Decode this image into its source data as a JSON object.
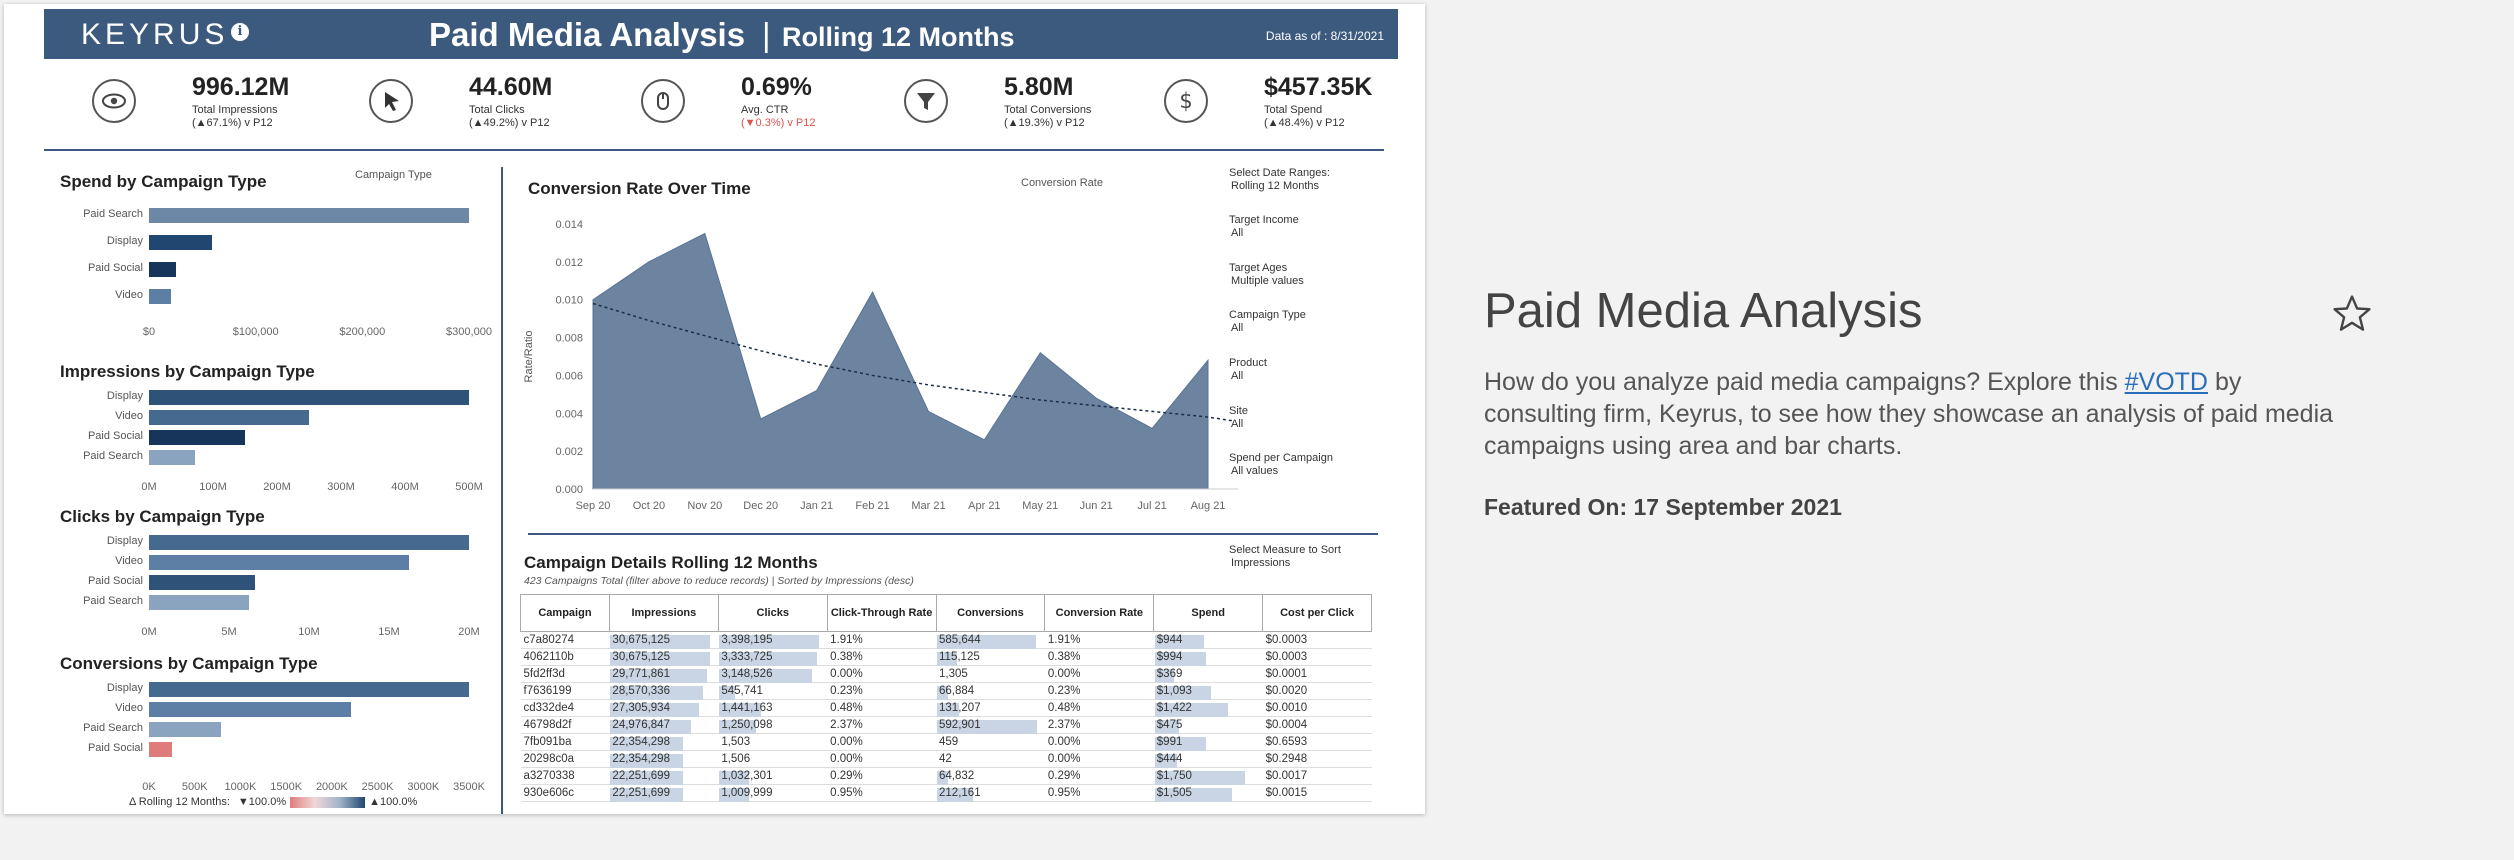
{
  "header": {
    "logo": "KEYRUS",
    "info_label": "i",
    "title": "Paid Media Analysis",
    "separator": "|",
    "subtitle": "Rolling 12 Months",
    "data_as_of": "Data as of : 8/31/2021"
  },
  "kpis": [
    {
      "icon": "eye-icon",
      "value": "996.12M",
      "label": "Total Impressions",
      "change": "(▲67.1%) v P12",
      "dir": "up"
    },
    {
      "icon": "cursor-icon",
      "value": "44.60M",
      "label": "Total Clicks",
      "change": "(▲49.2%) v P12",
      "dir": "up"
    },
    {
      "icon": "mouse-icon",
      "value": "0.69%",
      "label": "Avg. CTR",
      "change": "(▼0.3%) v P12",
      "dir": "down"
    },
    {
      "icon": "funnel-icon",
      "value": "5.80M",
      "label": "Total Conversions",
      "change": "(▲19.3%) v P12",
      "dir": "up"
    },
    {
      "icon": "dollar-icon",
      "value": "$457.35K",
      "label": "Total Spend",
      "change": "(▲48.4%) v P12",
      "dir": "up"
    }
  ],
  "spend": {
    "title": "Spend by Campaign Type",
    "legend_label": "Campaign Type",
    "bars": [
      {
        "label": "Paid Search",
        "value": 318000,
        "color": "#6d87a6"
      },
      {
        "label": "Display",
        "value": 63000,
        "color": "#1f4770"
      },
      {
        "label": "Paid Social",
        "value": 27000,
        "color": "#17355a"
      },
      {
        "label": "Video",
        "value": 22000,
        "color": "#5d7fa6"
      }
    ],
    "max": 318000,
    "ticks": [
      "$0",
      "$100,000",
      "$200,000",
      "$300,000"
    ]
  },
  "impressions": {
    "title": "Impressions by Campaign Type",
    "bars": [
      {
        "label": "Display",
        "value": 505,
        "color": "#2f5378"
      },
      {
        "label": "Video",
        "value": 252,
        "color": "#46698f"
      },
      {
        "label": "Paid Social",
        "value": 152,
        "color": "#17355a"
      },
      {
        "label": "Paid Search",
        "value": 72,
        "color": "#8aa3bf"
      }
    ],
    "max": 505,
    "ticks": [
      "0M",
      "100M",
      "200M",
      "300M",
      "400M",
      "500M"
    ]
  },
  "clicks": {
    "title": "Clicks by Campaign Type",
    "bars": [
      {
        "label": "Display",
        "value": 20.2,
        "color": "#46698f"
      },
      {
        "label": "Video",
        "value": 16.4,
        "color": "#5d7fa6"
      },
      {
        "label": "Paid Social",
        "value": 6.7,
        "color": "#2f5378"
      },
      {
        "label": "Paid Search",
        "value": 6.3,
        "color": "#8aa3bf"
      }
    ],
    "max": 20.2,
    "ticks": [
      "0M",
      "5M",
      "10M",
      "15M",
      "20M"
    ]
  },
  "conversions": {
    "title": "Conversions by Campaign Type",
    "bars": [
      {
        "label": "Display",
        "value": 3500,
        "color": "#46698f"
      },
      {
        "label": "Video",
        "value": 2210,
        "color": "#5d7fa6"
      },
      {
        "label": "Paid Search",
        "value": 790,
        "color": "#8aa3bf"
      },
      {
        "label": "Paid Social",
        "value": 250,
        "color": "#e07b7b"
      }
    ],
    "max": 3500,
    "ticks": [
      "0K",
      "500K",
      "1000K",
      "1500K",
      "2000K",
      "2500K",
      "3000K",
      "3500K"
    ]
  },
  "legend_delta": {
    "label": "Δ Rolling 12 Months:",
    "min": "▼100.0%",
    "max": "▲100.0%"
  },
  "chart_data": {
    "type": "area",
    "title": "Conversion Rate Over Time",
    "legend_label": "Conversion Rate",
    "ylabel": "Rate/Ratio",
    "x": [
      "Sep 20",
      "Oct 20",
      "Nov 20",
      "Dec 20",
      "Jan 21",
      "Feb 21",
      "Mar 21",
      "Apr 21",
      "May 21",
      "Jun 21",
      "Jul 21",
      "Aug 21"
    ],
    "values": [
      0.01,
      0.012,
      0.0135,
      0.0037,
      0.0052,
      0.0104,
      0.0041,
      0.0026,
      0.0072,
      0.0048,
      0.0032,
      0.0068
    ],
    "trend": [
      0.0098,
      0.0089,
      0.0081,
      0.0073,
      0.0066,
      0.006,
      0.0055,
      0.0051,
      0.0047,
      0.0044,
      0.0041,
      0.0038
    ],
    "ylim": [
      0,
      0.014
    ],
    "yticks": [
      "0.000",
      "0.002",
      "0.004",
      "0.006",
      "0.008",
      "0.010",
      "0.012",
      "0.014"
    ],
    "grid": false
  },
  "filters": [
    {
      "label": "Select Date Ranges:",
      "value": "Rolling 12 Months"
    },
    {
      "label": "Target Income",
      "value": "All"
    },
    {
      "label": "Target Ages",
      "value": "Multiple values"
    },
    {
      "label": "Campaign Type",
      "value": "All"
    },
    {
      "label": "Product",
      "value": "All"
    },
    {
      "label": "Site",
      "value": "All"
    },
    {
      "label": "Spend per Campaign",
      "value": "All values"
    }
  ],
  "measure_select": {
    "label": "Select Measure to Sort",
    "value": "Impressions"
  },
  "details": {
    "title": "Campaign Details Rolling 12 Months",
    "subtitle": "423 Campaigns Total (filter above to reduce records) | Sorted by Impressions (desc)",
    "columns": [
      "Campaign",
      "Impressions",
      "Clicks",
      "Click-Through Rate",
      "Conversions",
      "Conversion Rate",
      "Spend",
      "Cost per Click"
    ],
    "rows": [
      {
        "c": "c7a80274",
        "imp": "30,675,125",
        "imp_f": 1.0,
        "clk": "3,398,195",
        "clk_f": 1.0,
        "ctr": "1.91%",
        "conv": "585,644",
        "conv_f": 0.99,
        "cr": "1.91%",
        "sp": "$944",
        "sp_f": 0.55,
        "cpc": "$0.0003"
      },
      {
        "c": "4062110b",
        "imp": "30,675,125",
        "imp_f": 1.0,
        "clk": "3,333,725",
        "clk_f": 0.98,
        "ctr": "0.38%",
        "conv": "115,125",
        "conv_f": 0.2,
        "cr": "0.38%",
        "sp": "$994",
        "sp_f": 0.57,
        "cpc": "$0.0003"
      },
      {
        "c": "5fd2ff3d",
        "imp": "29,771,861",
        "imp_f": 0.97,
        "clk": "3,148,526",
        "clk_f": 0.93,
        "ctr": "0.00%",
        "conv": "1,305",
        "conv_f": 0.0,
        "cr": "0.00%",
        "sp": "$369",
        "sp_f": 0.21,
        "cpc": "$0.0001"
      },
      {
        "c": "f7636199",
        "imp": "28,570,336",
        "imp_f": 0.93,
        "clk": "545,741",
        "clk_f": 0.16,
        "ctr": "0.23%",
        "conv": "66,884",
        "conv_f": 0.11,
        "cr": "0.23%",
        "sp": "$1,093",
        "sp_f": 0.62,
        "cpc": "$0.0020"
      },
      {
        "c": "cd332de4",
        "imp": "27,305,934",
        "imp_f": 0.89,
        "clk": "1,441,163",
        "clk_f": 0.42,
        "ctr": "0.48%",
        "conv": "131,207",
        "conv_f": 0.22,
        "cr": "0.48%",
        "sp": "$1,422",
        "sp_f": 0.81,
        "cpc": "$0.0010"
      },
      {
        "c": "46798d2f",
        "imp": "24,976,847",
        "imp_f": 0.81,
        "clk": "1,250,098",
        "clk_f": 0.37,
        "ctr": "2.37%",
        "conv": "592,901",
        "conv_f": 1.0,
        "cr": "2.37%",
        "sp": "$475",
        "sp_f": 0.27,
        "cpc": "$0.0004"
      },
      {
        "c": "7fb091ba",
        "imp": "22,354,298",
        "imp_f": 0.73,
        "clk": "1,503",
        "clk_f": 0.0,
        "ctr": "0.00%",
        "conv": "459",
        "conv_f": 0.0,
        "cr": "0.00%",
        "sp": "$991",
        "sp_f": 0.57,
        "cpc": "$0.6593"
      },
      {
        "c": "20298c0a",
        "imp": "22,354,298",
        "imp_f": 0.73,
        "clk": "1,506",
        "clk_f": 0.0,
        "ctr": "0.00%",
        "conv": "42",
        "conv_f": 0.0,
        "cr": "0.00%",
        "sp": "$444",
        "sp_f": 0.25,
        "cpc": "$0.2948"
      },
      {
        "c": "a3270338",
        "imp": "22,251,699",
        "imp_f": 0.73,
        "clk": "1,032,301",
        "clk_f": 0.3,
        "ctr": "0.29%",
        "conv": "64,832",
        "conv_f": 0.11,
        "cr": "0.29%",
        "sp": "$1,750",
        "sp_f": 1.0,
        "cpc": "$0.0017"
      },
      {
        "c": "930e606c",
        "imp": "22,251,699",
        "imp_f": 0.73,
        "clk": "1,009,999",
        "clk_f": 0.3,
        "ctr": "0.95%",
        "conv": "212,161",
        "conv_f": 0.36,
        "cr": "0.95%",
        "sp": "$1,505",
        "sp_f": 0.86,
        "cpc": "$0.0015"
      }
    ]
  },
  "side": {
    "title": "Paid Media Analysis",
    "desc_before": "How do you analyze paid media campaigns? Explore this ",
    "link": "#VOTD",
    "desc_after": " by consulting firm, Keyrus, to see how they showcase an analysis of paid media campaigns using area and bar charts.",
    "featured": "Featured On: 17 September 2021"
  },
  "colors": {
    "header_bg": "#3b5a7e",
    "area_fill": "#6d84a0",
    "up": "#1f4e79",
    "down": "#d9534f"
  }
}
